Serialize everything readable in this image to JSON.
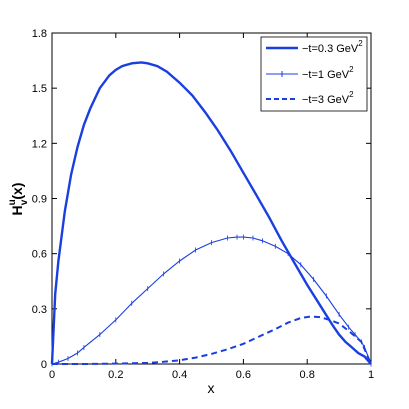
{
  "chart_data": {
    "type": "line",
    "xlabel": "x",
    "ylabel_main": "H",
    "ylabel_sub": "v",
    "ylabel_sup": "u",
    "ylabel_arg": "(x)",
    "xlim": [
      0,
      1
    ],
    "ylim": [
      0,
      1.8
    ],
    "x_ticks": [
      "0",
      "0.2",
      "0.4",
      "0.6",
      "0.8",
      "1"
    ],
    "y_ticks": [
      "0",
      "0.3",
      "0.6",
      "0.9",
      "1.2",
      "1.5",
      "1.8"
    ],
    "grid": false,
    "legend_position": "top-right",
    "line_color": "#1a3fe0",
    "series": [
      {
        "name": "−t=0.3 GeV",
        "name_sup": "2",
        "style": "solid-thick",
        "x": [
          0,
          0.01,
          0.02,
          0.04,
          0.06,
          0.08,
          0.1,
          0.12,
          0.15,
          0.18,
          0.2,
          0.22,
          0.25,
          0.28,
          0.3,
          0.33,
          0.36,
          0.4,
          0.44,
          0.48,
          0.52,
          0.56,
          0.6,
          0.64,
          0.68,
          0.72,
          0.76,
          0.8,
          0.84,
          0.88,
          0.9,
          0.92,
          0.94,
          0.96,
          0.97,
          0.98,
          0.99,
          1.0
        ],
        "y": [
          0,
          0.38,
          0.56,
          0.83,
          1.03,
          1.18,
          1.3,
          1.39,
          1.5,
          1.57,
          1.6,
          1.62,
          1.635,
          1.64,
          1.635,
          1.62,
          1.59,
          1.53,
          1.46,
          1.37,
          1.27,
          1.16,
          1.04,
          0.92,
          0.8,
          0.67,
          0.55,
          0.43,
          0.32,
          0.21,
          0.16,
          0.12,
          0.09,
          0.06,
          0.05,
          0.04,
          0.02,
          0
        ]
      },
      {
        "name": "−t=1 GeV",
        "name_sup": "2",
        "style": "solid-marker",
        "x": [
          0,
          0.02,
          0.05,
          0.08,
          0.1,
          0.15,
          0.2,
          0.25,
          0.3,
          0.35,
          0.4,
          0.45,
          0.5,
          0.55,
          0.58,
          0.6,
          0.63,
          0.66,
          0.7,
          0.74,
          0.78,
          0.82,
          0.86,
          0.9,
          0.93,
          0.95,
          0.97,
          0.98,
          1.0
        ],
        "y": [
          0,
          0.01,
          0.03,
          0.06,
          0.09,
          0.16,
          0.24,
          0.33,
          0.41,
          0.49,
          0.56,
          0.62,
          0.66,
          0.685,
          0.69,
          0.69,
          0.685,
          0.67,
          0.64,
          0.6,
          0.54,
          0.46,
          0.37,
          0.27,
          0.2,
          0.16,
          0.12,
          0.09,
          0
        ]
      },
      {
        "name": "−t=3 GeV",
        "name_sup": "2",
        "style": "dashed",
        "x": [
          0,
          0.1,
          0.2,
          0.3,
          0.35,
          0.4,
          0.45,
          0.5,
          0.55,
          0.6,
          0.65,
          0.7,
          0.74,
          0.78,
          0.81,
          0.84,
          0.87,
          0.9,
          0.93,
          0.95,
          0.97,
          1.0
        ],
        "y": [
          0,
          0,
          0.002,
          0.006,
          0.012,
          0.02,
          0.035,
          0.055,
          0.08,
          0.11,
          0.15,
          0.19,
          0.225,
          0.25,
          0.258,
          0.255,
          0.24,
          0.22,
          0.18,
          0.15,
          0.12,
          0
        ]
      }
    ]
  }
}
